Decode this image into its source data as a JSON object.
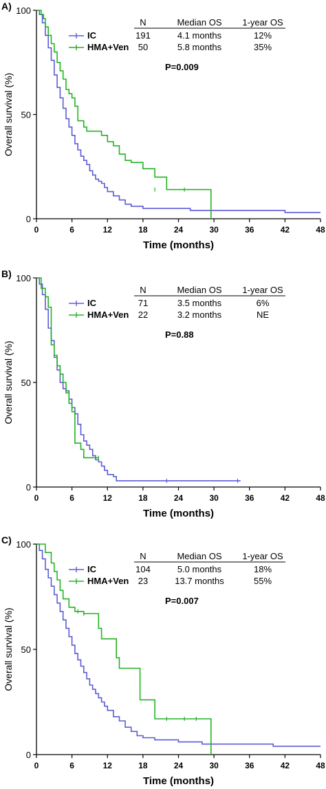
{
  "colors": {
    "ic": "#5b5bd6",
    "hma_ven": "#22b322",
    "axis": "#000000"
  },
  "chart_data": [
    {
      "type": "line",
      "panel_label": "A)",
      "xlabel": "Time (months)",
      "ylabel": "Overall survival (%)",
      "xlim": [
        0,
        48
      ],
      "ylim": [
        0,
        100
      ],
      "xticks": [
        "0",
        "6",
        "12",
        "18",
        "24",
        "30",
        "36",
        "42",
        "48"
      ],
      "yticks": [
        "0",
        "50",
        "100"
      ],
      "legend_headers": [
        "N",
        "Median OS",
        "1-year OS"
      ],
      "p_value": "P=0.009",
      "series": [
        {
          "name": "IC",
          "color_key": "ic",
          "n": "191",
          "median": "4.1 months",
          "one_year": "12%",
          "x": [
            0,
            0.5,
            1,
            1.5,
            2,
            2.5,
            3,
            3.5,
            4,
            4.5,
            5,
            5.5,
            6,
            6.5,
            7,
            7.5,
            8,
            8.5,
            9,
            9.5,
            10,
            10.5,
            11,
            11.5,
            12,
            13,
            14,
            15,
            16,
            18,
            20,
            22,
            24,
            26,
            28,
            30,
            34,
            38,
            40,
            42,
            44,
            46,
            48
          ],
          "y": [
            100,
            98,
            94,
            88,
            82,
            76,
            69,
            63,
            58,
            53,
            48,
            44,
            40,
            36,
            33,
            30,
            28,
            26,
            23,
            21,
            19,
            18,
            17,
            15,
            13,
            11,
            9,
            7,
            6,
            5,
            5,
            5,
            5,
            4,
            4,
            4,
            4,
            4,
            4,
            3,
            3,
            3,
            3
          ]
        },
        {
          "name": "HMA+Ven",
          "color_key": "hma_ven",
          "n": "50",
          "median": "5.8 months",
          "one_year": "35%",
          "x": [
            0,
            0.8,
            1.2,
            1.5,
            2,
            2.5,
            3,
            3.5,
            4,
            4.5,
            5,
            5.5,
            6,
            6.5,
            7,
            8,
            8.5,
            10,
            11,
            12,
            13,
            14,
            15,
            16,
            17,
            18,
            20,
            22,
            24,
            26,
            28,
            29.5,
            29.5
          ],
          "y": [
            100,
            98,
            96,
            92,
            88,
            84,
            80,
            75,
            71,
            67,
            62,
            60,
            58,
            54,
            47,
            44,
            42,
            42,
            40,
            37,
            35,
            31,
            28,
            27,
            27,
            24,
            20,
            14,
            14,
            14,
            14,
            14,
            0
          ]
        }
      ],
      "censor_marks": {
        "HMA+Ven": [
          [
            20,
            14
          ],
          [
            25,
            14
          ]
        ]
      }
    },
    {
      "type": "line",
      "panel_label": "B)",
      "xlabel": "Time (months)",
      "ylabel": "Overall survival (%)",
      "xlim": [
        0,
        48
      ],
      "ylim": [
        0,
        100
      ],
      "xticks": [
        "0",
        "6",
        "12",
        "18",
        "24",
        "30",
        "36",
        "42",
        "48"
      ],
      "yticks": [
        "0",
        "50",
        "100"
      ],
      "legend_headers": [
        "N",
        "Median OS",
        "1-year OS"
      ],
      "p_value": "P=0.88",
      "series": [
        {
          "name": "IC",
          "color_key": "ic",
          "n": "71",
          "median": "3.5 months",
          "one_year": "6%",
          "x": [
            0,
            0.5,
            1,
            1.5,
            2,
            2.5,
            3,
            3.5,
            4,
            4.5,
            5,
            5.5,
            6,
            6.5,
            7,
            7.5,
            8,
            8.5,
            9,
            9.5,
            10,
            10.5,
            11,
            11.5,
            12,
            13,
            13.5,
            14,
            16,
            18,
            20,
            22,
            24,
            26,
            28,
            30,
            32,
            34.5
          ],
          "y": [
            100,
            97,
            92,
            85,
            76,
            70,
            62,
            56,
            50,
            47,
            46,
            42,
            38,
            35,
            30,
            25,
            22,
            20,
            18,
            15,
            13,
            12,
            10,
            8,
            6,
            5,
            3,
            3,
            3,
            3,
            3,
            3,
            3,
            3,
            3,
            3,
            3,
            3
          ]
        },
        {
          "name": "HMA+Ven",
          "color_key": "hma_ven",
          "n": "22",
          "median": "3.2 months",
          "one_year": "NE",
          "x": [
            0,
            0.8,
            1.5,
            2,
            2.5,
            3,
            3.5,
            4,
            4.5,
            5,
            5.5,
            6,
            6.5,
            7,
            7.5,
            8,
            9,
            10.5
          ],
          "y": [
            100,
            95,
            91,
            86,
            68,
            63,
            58,
            54,
            50,
            45,
            40,
            36,
            21,
            21,
            18,
            14,
            14,
            14
          ]
        }
      ],
      "censor_marks": {
        "IC": [
          [
            22,
            3
          ],
          [
            34,
            3
          ]
        ],
        "HMA+Ven": [
          [
            10.5,
            14
          ]
        ]
      }
    },
    {
      "type": "line",
      "panel_label": "C)",
      "xlabel": "Time (months)",
      "ylabel": "Overall survival (%)",
      "xlim": [
        0,
        48
      ],
      "ylim": [
        0,
        100
      ],
      "xticks": [
        "0",
        "6",
        "12",
        "18",
        "24",
        "30",
        "36",
        "42",
        "48"
      ],
      "yticks": [
        "0",
        "50",
        "100"
      ],
      "legend_headers": [
        "N",
        "Median OS",
        "1-year OS"
      ],
      "p_value": "P=0.007",
      "series": [
        {
          "name": "IC",
          "color_key": "ic",
          "n": "104",
          "median": "5.0 months",
          "one_year": "18%",
          "x": [
            0,
            0.5,
            1,
            1.5,
            2,
            2.5,
            3,
            3.5,
            4,
            4.5,
            5,
            5.5,
            6,
            6.5,
            7,
            7.5,
            8,
            8.5,
            9,
            9.5,
            10,
            10.5,
            11,
            11.5,
            12,
            13,
            14,
            15,
            16,
            17,
            18,
            20,
            22,
            24,
            26,
            28,
            30,
            32,
            34,
            36,
            38,
            40,
            42,
            44,
            46,
            48
          ],
          "y": [
            100,
            97,
            93,
            88,
            84,
            80,
            76,
            72,
            68,
            64,
            60,
            56,
            52,
            48,
            45,
            42,
            39,
            36,
            33,
            31,
            29,
            27,
            25,
            23,
            21,
            18,
            16,
            13,
            11,
            9,
            8,
            7,
            7,
            6,
            6,
            5,
            5,
            5,
            5,
            5,
            5,
            4,
            4,
            4,
            4,
            4
          ]
        },
        {
          "name": "HMA+Ven",
          "color_key": "hma_ven",
          "n": "23",
          "median": "13.7 months",
          "one_year": "55%",
          "x": [
            0,
            1.5,
            2.5,
            3,
            3.5,
            4,
            4.5,
            5.5,
            6.5,
            7.5,
            8,
            9,
            10.5,
            11,
            12,
            13,
            13.5,
            14,
            15,
            16,
            17,
            17.5,
            18,
            19,
            20,
            21,
            22,
            24,
            26,
            28,
            29.5,
            29.5
          ],
          "y": [
            100,
            96,
            91,
            87,
            83,
            78,
            74,
            70,
            68,
            68,
            67,
            67,
            60,
            55,
            55,
            55,
            46,
            41,
            41,
            41,
            41,
            26,
            26,
            26,
            17,
            17,
            17,
            17,
            17,
            17,
            17,
            0
          ]
        }
      ],
      "censor_marks": {
        "HMA+Ven": [
          [
            7,
            68
          ],
          [
            8,
            67
          ],
          [
            22,
            17
          ],
          [
            25,
            17
          ],
          [
            27,
            17
          ]
        ]
      }
    }
  ]
}
